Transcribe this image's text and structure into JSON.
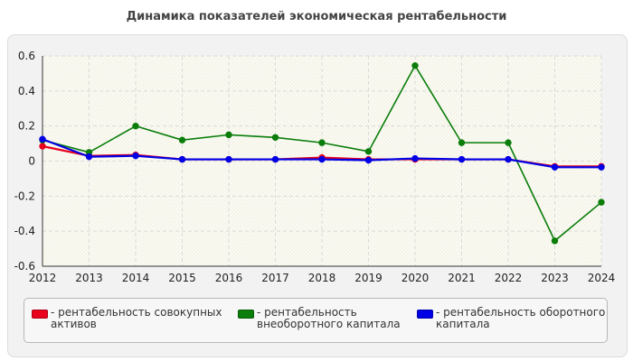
{
  "title": "Динамика показателей экономическая рентабельности",
  "chart_data": {
    "type": "line",
    "title": "Динамика показателей экономическая рентабельности",
    "x": [
      "2012",
      "2013",
      "2014",
      "2015",
      "2016",
      "2017",
      "2018",
      "2019",
      "2020",
      "2021",
      "2022",
      "2023",
      "2024"
    ],
    "ylim": [
      -0.6,
      0.6
    ],
    "yticks": [
      -0.6,
      -0.4,
      -0.2,
      0,
      0.2,
      0.4,
      0.6
    ],
    "ytick_labels": [
      "-0.6",
      "-0.4",
      "-0.2",
      "0",
      "0.2",
      "0.4",
      "0.6"
    ],
    "grid": true,
    "legend_position": "bottom",
    "series": [
      {
        "name": "рентабельность совокупных активов",
        "color": "#e8001c",
        "values": [
          0.085,
          0.03,
          0.035,
          0.01,
          0.01,
          0.01,
          0.02,
          0.01,
          0.01,
          0.01,
          0.01,
          -0.03,
          -0.03
        ]
      },
      {
        "name": "рентабельность внеоборотного капитала",
        "color": "#0a7d0a",
        "values": [
          0.12,
          0.05,
          0.2,
          0.12,
          0.15,
          0.135,
          0.105,
          0.055,
          0.545,
          0.105,
          0.105,
          -0.455,
          -0.235
        ]
      },
      {
        "name": "рентабельность оборотного капитала",
        "color": "#0000e6",
        "values": [
          0.125,
          0.025,
          0.03,
          0.01,
          0.01,
          0.01,
          0.01,
          0.005,
          0.015,
          0.01,
          0.01,
          -0.035,
          -0.035
        ]
      }
    ]
  },
  "legend": {
    "items": [
      {
        "label": "- рентабельность совокупных активов",
        "color": "#e8001c"
      },
      {
        "label": "- рентабельность внеоборотного капитала",
        "color": "#0a7d0a"
      },
      {
        "label": "- рентабельность оборотного капитала",
        "color": "#0000e6"
      }
    ]
  }
}
